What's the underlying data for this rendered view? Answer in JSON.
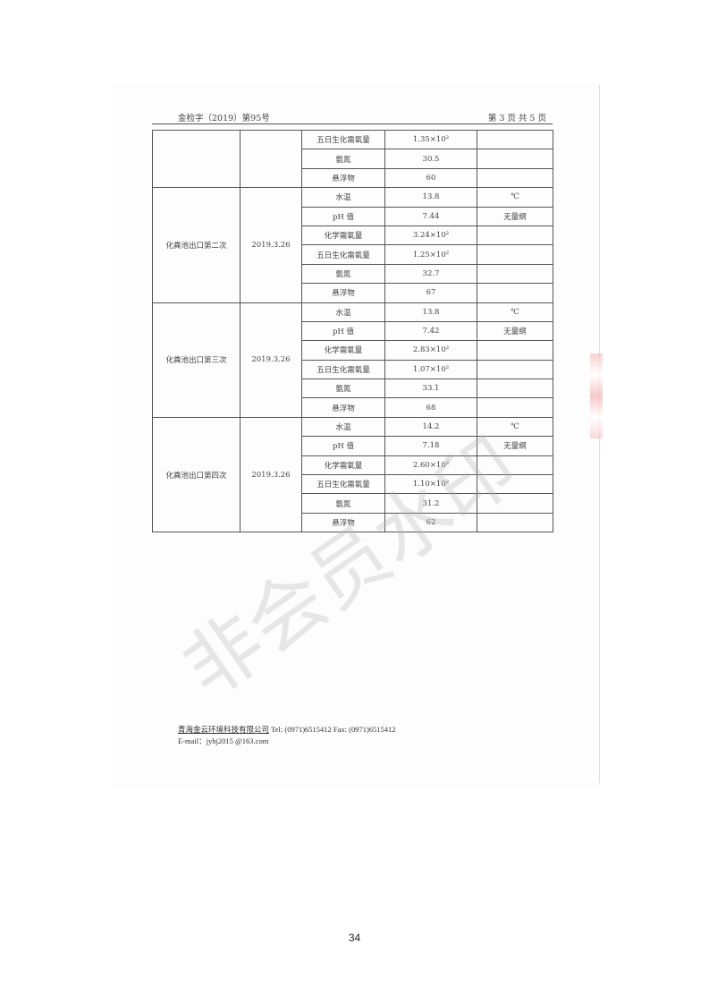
{
  "header": {
    "doc_no": "金检字（2019）第95号",
    "page_info": "第 3 页 共 5 页"
  },
  "table": {
    "sections": [
      {
        "location": "",
        "date": "",
        "rows": [
          {
            "item": "五日生化需氧量",
            "value": "1.35×10²",
            "unit": ""
          },
          {
            "item": "氨氮",
            "value": "30.5",
            "unit": ""
          },
          {
            "item": "悬浮物",
            "value": "60",
            "unit": ""
          }
        ]
      },
      {
        "location": "化粪池出口第二次",
        "date": "2019.3.26",
        "rows": [
          {
            "item": "水温",
            "value": "13.8",
            "unit": "℃"
          },
          {
            "item": "pH 值",
            "value": "7.44",
            "unit": "无量纲"
          },
          {
            "item": "化学需氧量",
            "value": "3.24×10²",
            "unit": ""
          },
          {
            "item": "五日生化需氧量",
            "value": "1.25×10²",
            "unit": ""
          },
          {
            "item": "氨氮",
            "value": "32.7",
            "unit": ""
          },
          {
            "item": "悬浮物",
            "value": "67",
            "unit": ""
          }
        ]
      },
      {
        "location": "化粪池出口第三次",
        "date": "2019.3.26",
        "rows": [
          {
            "item": "水温",
            "value": "13.8",
            "unit": "℃"
          },
          {
            "item": "pH 值",
            "value": "7.42",
            "unit": "无量纲"
          },
          {
            "item": "化学需氧量",
            "value": "2.83×10²",
            "unit": ""
          },
          {
            "item": "五日生化需氧量",
            "value": "1.07×10²",
            "unit": ""
          },
          {
            "item": "氨氮",
            "value": "33.1",
            "unit": ""
          },
          {
            "item": "悬浮物",
            "value": "68",
            "unit": ""
          }
        ]
      },
      {
        "location": "化粪池出口第四次",
        "date": "2019.3.26",
        "rows": [
          {
            "item": "水温",
            "value": "14.2",
            "unit": "℃"
          },
          {
            "item": "pH 值",
            "value": "7.18",
            "unit": "无量纲"
          },
          {
            "item": "化学需氧量",
            "value": "2.60×10²",
            "unit": ""
          },
          {
            "item": "五日生化需氧量",
            "value": "1.10×10²",
            "unit": ""
          },
          {
            "item": "氨氮",
            "value": "31.2",
            "unit": ""
          },
          {
            "item": "悬浮物",
            "value": "62",
            "unit": ""
          }
        ]
      }
    ]
  },
  "footer": {
    "company": "青海金云环境科技有限公司",
    "tel": "Tel:  (0971)6515412   Fax:  (0971)6515412",
    "email": "E-mail：jyhj2015 @163.com"
  },
  "watermark": "非会员水印",
  "page_number": "34"
}
